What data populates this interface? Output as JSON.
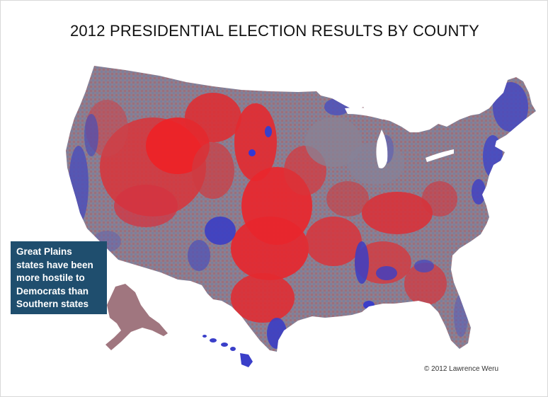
{
  "title": "2012 PRESIDENTIAL ELECTION RESULTS BY COUNTY",
  "annotation": {
    "lines": [
      "Great Plains",
      "states have been",
      "more hostile to",
      "Democrats than",
      "Southern states"
    ]
  },
  "credit": "© 2012 Lawrence Weru",
  "colors": {
    "republican": "#e8262b",
    "democrat": "#3a3fc9",
    "mixed": "#8c7a8c",
    "annotation_bg": "#1f4e6e",
    "alaska": "#9b6f78",
    "background": "#ffffff"
  },
  "map": {
    "regions": [
      "contiguous-us",
      "alaska",
      "hawaii"
    ]
  }
}
